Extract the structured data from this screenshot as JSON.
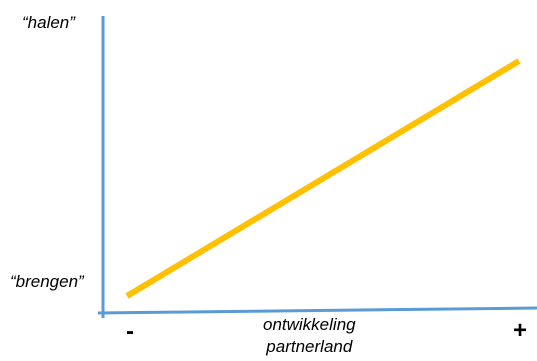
{
  "diagram": {
    "y_axis": {
      "top_label": "“halen”",
      "bottom_label": "“brengen”"
    },
    "x_axis": {
      "label_line1": "ontwikkeling",
      "label_line2": "partnerland",
      "min_label": "-",
      "max_label": "+"
    },
    "colors": {
      "axis": "#5b9bd5",
      "trend_line": "#ffc000",
      "text": "#000000"
    }
  }
}
